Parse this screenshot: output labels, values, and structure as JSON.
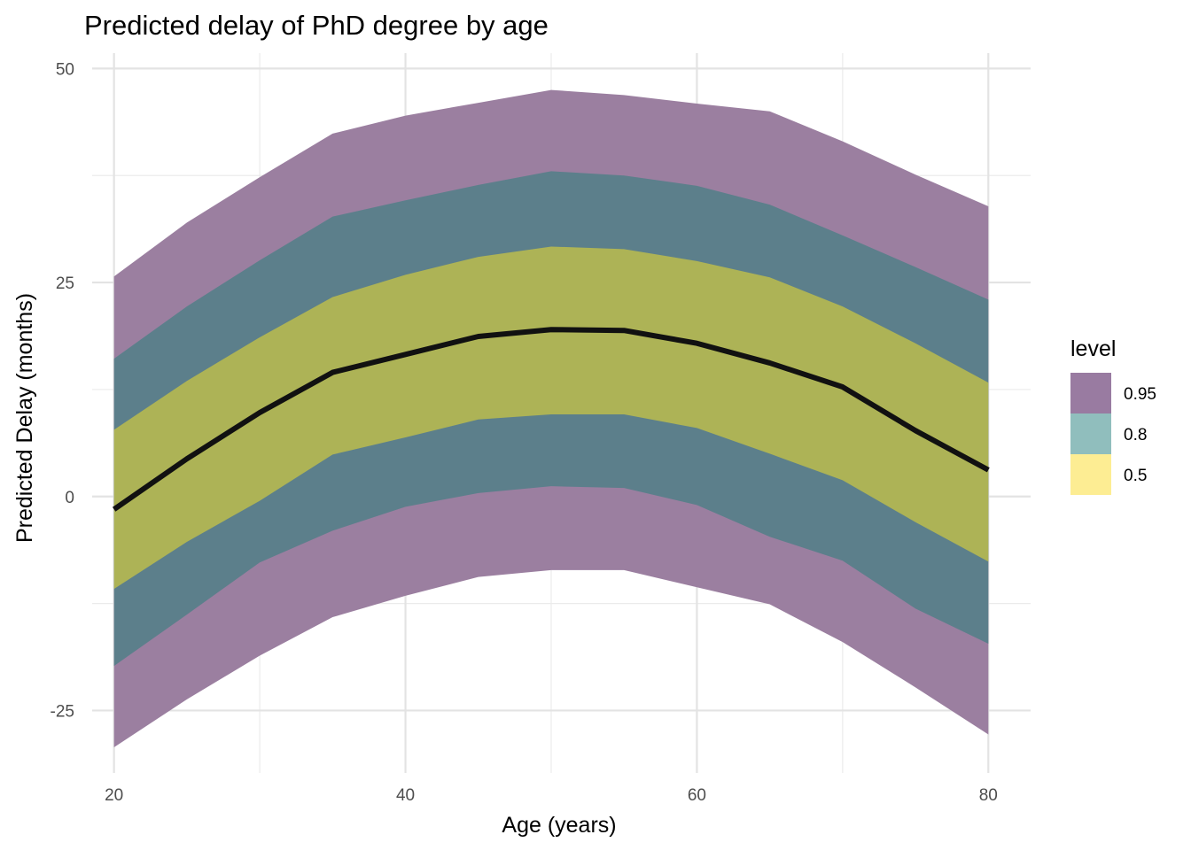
{
  "chart_data": {
    "type": "area",
    "title": "Predicted delay of PhD degree by age",
    "xlabel": "Age (years)",
    "ylabel": "Predicted Delay (months)",
    "xlim": [
      18.5,
      82.9
    ],
    "ylim": [
      -32.3,
      51.8
    ],
    "x_ticks": [
      20,
      40,
      60,
      80
    ],
    "x_tick_labels": [
      "20",
      "40",
      "60",
      "80"
    ],
    "y_ticks": [
      -25,
      0,
      25,
      50
    ],
    "y_tick_labels": [
      "-25",
      "0",
      "25",
      "50"
    ],
    "grid": true,
    "legend": {
      "title": "level",
      "position": "right",
      "entries": [
        {
          "label": "0.95",
          "color": "#7f5a89"
        },
        {
          "label": "0.8",
          "color": "#74aeac"
        },
        {
          "label": "0.5",
          "color": "#fde878"
        }
      ]
    },
    "colors": {
      "band_95": "#9b7fa0",
      "band_80": "#5c7f8b",
      "band_50": "#adb356",
      "line": "#111111"
    },
    "x": [
      20,
      25,
      30,
      35,
      40,
      45,
      50,
      55,
      60,
      65,
      70,
      75,
      80
    ],
    "series": [
      {
        "name": "0.95",
        "lower": [
          -29.3,
          -23.7,
          -18.6,
          -14.1,
          -11.6,
          -9.4,
          -8.6,
          -8.6,
          -10.6,
          -12.6,
          -17.0,
          -22.3,
          -27.8
        ],
        "upper": [
          25.7,
          32.0,
          37.3,
          42.4,
          44.5,
          46.0,
          47.5,
          46.9,
          45.9,
          45.0,
          41.5,
          37.6,
          33.9
        ]
      },
      {
        "name": "0.8",
        "lower": [
          -19.8,
          -13.8,
          -7.7,
          -4.0,
          -1.2,
          0.4,
          1.2,
          1.0,
          -1.0,
          -4.7,
          -7.5,
          -13.1,
          -17.2
        ],
        "upper": [
          16.1,
          22.2,
          27.6,
          32.7,
          34.6,
          36.4,
          38.0,
          37.5,
          36.3,
          34.1,
          30.5,
          26.8,
          23.0
        ]
      },
      {
        "name": "0.5",
        "lower": [
          -10.8,
          -5.3,
          -0.5,
          4.9,
          6.9,
          9.0,
          9.6,
          9.6,
          8.0,
          5.0,
          1.9,
          -3.0,
          -7.6
        ],
        "upper": [
          7.8,
          13.5,
          18.6,
          23.3,
          25.9,
          28.0,
          29.2,
          28.9,
          27.5,
          25.6,
          22.2,
          17.9,
          13.3
        ]
      },
      {
        "name": "median",
        "values": [
          -1.5,
          4.4,
          9.8,
          14.5,
          16.6,
          18.7,
          19.5,
          19.4,
          17.9,
          15.6,
          12.8,
          7.7,
          3.1
        ]
      }
    ]
  }
}
